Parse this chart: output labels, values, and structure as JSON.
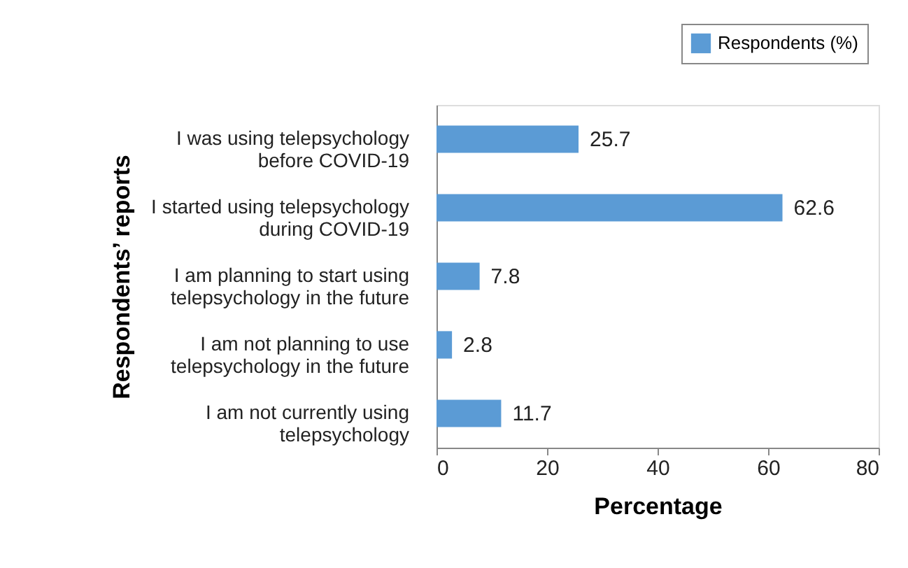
{
  "chart_data": {
    "type": "bar",
    "orientation": "horizontal",
    "xlabel": "Percentage",
    "ylabel": "Respondents’ reports",
    "legend": "top right",
    "categories": [
      "I was using telepsychology\nbefore COVID-19",
      "I started using telepsychology\nduring COVID-19",
      "I am planning to start using\ntelepsychology in the future",
      "I am not planning to use\ntelepsychology in the future",
      "I am not currently using\ntelepsychology"
    ],
    "series": [
      {
        "name": "Respondents (%)",
        "color": "#5b9bd5",
        "values": [
          25.7,
          62.6,
          7.8,
          2.8,
          11.7
        ]
      }
    ],
    "xlim": [
      0,
      80
    ],
    "xticks": [
      0,
      20,
      40,
      60,
      80
    ],
    "data_labels": true,
    "grid": false
  }
}
